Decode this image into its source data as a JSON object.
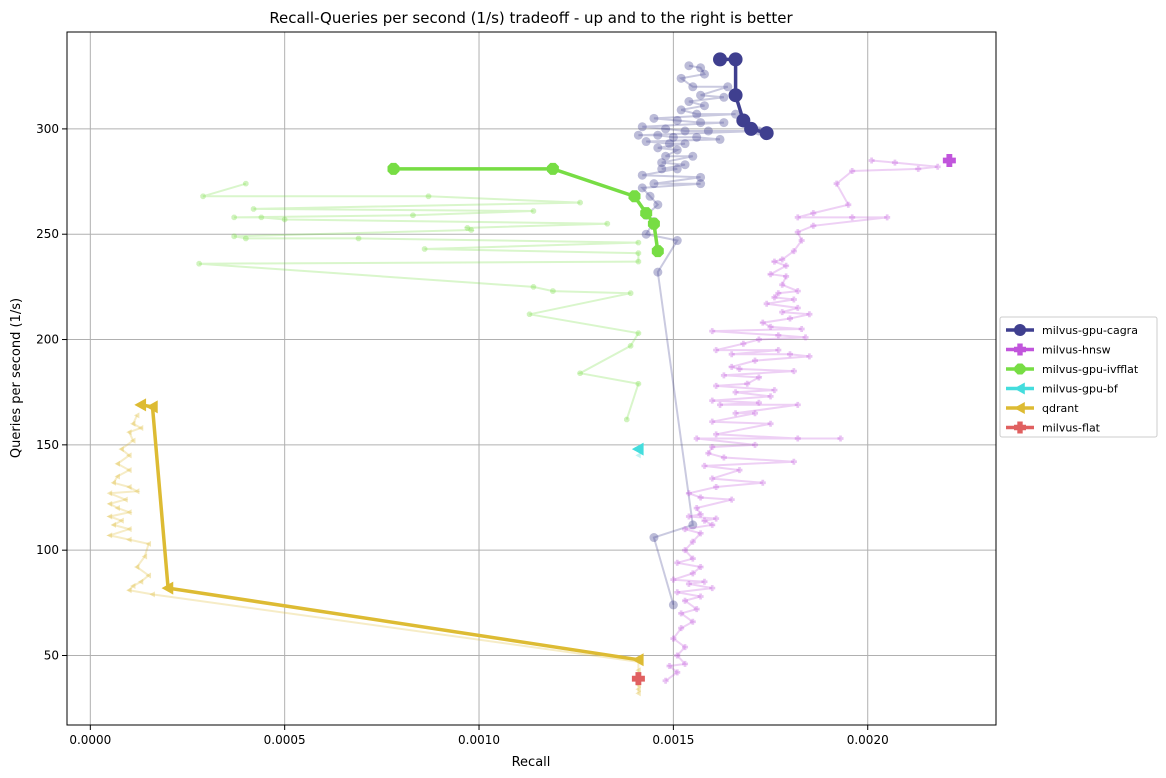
{
  "chart_data": {
    "type": "line",
    "title": "Recall-Queries per second (1/s) tradeoff - up and to the right is better",
    "xlabel": "Recall",
    "ylabel": "Queries per second (1/s)",
    "xlim": [
      -6e-05,
      0.00233
    ],
    "ylim": [
      17,
      346
    ],
    "xticks": [
      0.0,
      0.0005,
      0.001,
      0.0015,
      0.002
    ],
    "xtick_labels": [
      "0.0000",
      "0.0005",
      "0.0010",
      "0.0015",
      "0.0020"
    ],
    "yticks": [
      50,
      100,
      150,
      200,
      250,
      300
    ],
    "ytick_labels": [
      "50",
      "100",
      "150",
      "200",
      "250",
      "300"
    ],
    "grid": true,
    "legend_position": "right",
    "series": [
      {
        "name": "milvus-gpu-cagra",
        "color": "#3f3f8f",
        "marker": "circle",
        "frontier": [
          [
            0.00162,
            333
          ],
          [
            0.00166,
            333
          ],
          [
            0.00166,
            316
          ],
          [
            0.00168,
            304
          ],
          [
            0.0017,
            300
          ],
          [
            0.00174,
            298
          ]
        ],
        "scatter": [
          [
            0.00154,
            330
          ],
          [
            0.00157,
            329
          ],
          [
            0.00158,
            326
          ],
          [
            0.00152,
            324
          ],
          [
            0.00155,
            320
          ],
          [
            0.00164,
            320
          ],
          [
            0.00157,
            316
          ],
          [
            0.00163,
            315
          ],
          [
            0.00154,
            313
          ],
          [
            0.00158,
            311
          ],
          [
            0.00152,
            309
          ],
          [
            0.00156,
            307
          ],
          [
            0.00166,
            307
          ],
          [
            0.00145,
            305
          ],
          [
            0.00151,
            304
          ],
          [
            0.00157,
            303
          ],
          [
            0.00163,
            303
          ],
          [
            0.00142,
            301
          ],
          [
            0.00148,
            300
          ],
          [
            0.00153,
            299
          ],
          [
            0.00159,
            299
          ],
          [
            0.00172,
            299
          ],
          [
            0.00141,
            297
          ],
          [
            0.00146,
            297
          ],
          [
            0.0015,
            296
          ],
          [
            0.00156,
            296
          ],
          [
            0.00162,
            295
          ],
          [
            0.00143,
            294
          ],
          [
            0.00149,
            293
          ],
          [
            0.00153,
            293
          ],
          [
            0.00146,
            291
          ],
          [
            0.00151,
            290
          ],
          [
            0.00148,
            287
          ],
          [
            0.00155,
            287
          ],
          [
            0.00147,
            284
          ],
          [
            0.00153,
            283
          ],
          [
            0.00147,
            281
          ],
          [
            0.00151,
            281
          ],
          [
            0.00157,
            277
          ],
          [
            0.00142,
            278
          ],
          [
            0.00145,
            274
          ],
          [
            0.00157,
            274
          ],
          [
            0.00142,
            272
          ],
          [
            0.00144,
            268
          ],
          [
            0.00146,
            264
          ],
          [
            0.00143,
            259
          ],
          [
            0.00145,
            256
          ],
          [
            0.00143,
            250
          ],
          [
            0.00151,
            247
          ],
          [
            0.00146,
            232
          ],
          [
            0.00155,
            112
          ],
          [
            0.00145,
            106
          ],
          [
            0.0015,
            74
          ]
        ]
      },
      {
        "name": "milvus-hnsw",
        "color": "#c155dc",
        "marker": "plus",
        "frontier": [
          [
            0.00221,
            285
          ]
        ],
        "scatter": [
          [
            0.00201,
            285
          ],
          [
            0.00207,
            284
          ],
          [
            0.00213,
            281
          ],
          [
            0.00196,
            280
          ],
          [
            0.00218,
            282
          ],
          [
            0.00192,
            274
          ],
          [
            0.00195,
            264
          ],
          [
            0.00186,
            260
          ],
          [
            0.00182,
            258
          ],
          [
            0.00196,
            258
          ],
          [
            0.00205,
            258
          ],
          [
            0.00186,
            254
          ],
          [
            0.00182,
            251
          ],
          [
            0.00183,
            247
          ],
          [
            0.00181,
            242
          ],
          [
            0.00178,
            238
          ],
          [
            0.00176,
            237
          ],
          [
            0.00179,
            235
          ],
          [
            0.00175,
            231
          ],
          [
            0.00179,
            230
          ],
          [
            0.00178,
            226
          ],
          [
            0.00177,
            222
          ],
          [
            0.00182,
            223
          ],
          [
            0.00176,
            220
          ],
          [
            0.00181,
            219
          ],
          [
            0.00174,
            217
          ],
          [
            0.00182,
            215
          ],
          [
            0.00178,
            213
          ],
          [
            0.00185,
            212
          ],
          [
            0.0018,
            210
          ],
          [
            0.00173,
            208
          ],
          [
            0.00175,
            206
          ],
          [
            0.00183,
            205
          ],
          [
            0.0016,
            204
          ],
          [
            0.00177,
            202
          ],
          [
            0.00184,
            201
          ],
          [
            0.00172,
            200
          ],
          [
            0.00168,
            198
          ],
          [
            0.00161,
            195
          ],
          [
            0.00177,
            195
          ],
          [
            0.00165,
            193
          ],
          [
            0.0018,
            193
          ],
          [
            0.00185,
            192
          ],
          [
            0.00171,
            190
          ],
          [
            0.00165,
            187
          ],
          [
            0.00167,
            186
          ],
          [
            0.00181,
            185
          ],
          [
            0.00163,
            183
          ],
          [
            0.00172,
            182
          ],
          [
            0.00169,
            179
          ],
          [
            0.00161,
            178
          ],
          [
            0.00176,
            176
          ],
          [
            0.00166,
            175
          ],
          [
            0.00175,
            173
          ],
          [
            0.0016,
            171
          ],
          [
            0.00172,
            170
          ],
          [
            0.00162,
            169
          ],
          [
            0.00182,
            169
          ],
          [
            0.00166,
            165
          ],
          [
            0.00171,
            165
          ],
          [
            0.0016,
            161
          ],
          [
            0.00175,
            160
          ],
          [
            0.00161,
            155
          ],
          [
            0.00182,
            153
          ],
          [
            0.00193,
            153
          ],
          [
            0.00156,
            153
          ],
          [
            0.00171,
            150
          ],
          [
            0.0016,
            149
          ],
          [
            0.00159,
            146
          ],
          [
            0.00163,
            144
          ],
          [
            0.00181,
            142
          ],
          [
            0.00158,
            140
          ],
          [
            0.00167,
            138
          ],
          [
            0.0016,
            134
          ],
          [
            0.00173,
            132
          ],
          [
            0.00161,
            130
          ],
          [
            0.00154,
            127
          ],
          [
            0.00157,
            125
          ],
          [
            0.00165,
            124
          ],
          [
            0.00156,
            120
          ],
          [
            0.00157,
            117
          ],
          [
            0.00154,
            116
          ],
          [
            0.00161,
            115
          ],
          [
            0.00158,
            114
          ],
          [
            0.0016,
            112
          ],
          [
            0.00153,
            110
          ],
          [
            0.00157,
            108
          ],
          [
            0.00155,
            104
          ],
          [
            0.00153,
            100
          ],
          [
            0.00155,
            96
          ],
          [
            0.00151,
            94
          ],
          [
            0.00157,
            92
          ],
          [
            0.00155,
            89
          ],
          [
            0.0015,
            86
          ],
          [
            0.00158,
            85
          ],
          [
            0.00154,
            84
          ],
          [
            0.0016,
            82
          ],
          [
            0.00151,
            80
          ],
          [
            0.00157,
            78
          ],
          [
            0.00153,
            76
          ],
          [
            0.00156,
            72
          ],
          [
            0.00152,
            70
          ],
          [
            0.00155,
            66
          ],
          [
            0.00152,
            63
          ],
          [
            0.0015,
            58
          ],
          [
            0.00153,
            54
          ],
          [
            0.00151,
            50
          ],
          [
            0.00153,
            46
          ],
          [
            0.00149,
            45
          ],
          [
            0.00151,
            42
          ],
          [
            0.00148,
            38
          ]
        ]
      },
      {
        "name": "milvus-gpu-ivfflat",
        "color": "#77dd44",
        "marker": "octagon",
        "frontier": [
          [
            0.00078,
            281
          ],
          [
            0.00119,
            281
          ],
          [
            0.0014,
            268
          ],
          [
            0.00143,
            260
          ],
          [
            0.00145,
            255
          ],
          [
            0.00146,
            242
          ]
        ],
        "scatter": [
          [
            0.0004,
            274
          ],
          [
            0.00029,
            268
          ],
          [
            0.00087,
            268
          ],
          [
            0.00126,
            265
          ],
          [
            0.00042,
            262
          ],
          [
            0.00037,
            258
          ],
          [
            0.00044,
            258
          ],
          [
            0.00083,
            259
          ],
          [
            0.00114,
            261
          ],
          [
            0.0005,
            257
          ],
          [
            0.00097,
            253
          ],
          [
            0.00133,
            255
          ],
          [
            0.00098,
            252
          ],
          [
            0.00037,
            249
          ],
          [
            0.0004,
            248
          ],
          [
            0.00069,
            248
          ],
          [
            0.00086,
            243
          ],
          [
            0.00141,
            246
          ],
          [
            0.00141,
            241
          ],
          [
            0.00028,
            236
          ],
          [
            0.00141,
            237
          ],
          [
            0.00114,
            225
          ],
          [
            0.00119,
            223
          ],
          [
            0.00139,
            222
          ],
          [
            0.00113,
            212
          ],
          [
            0.00141,
            203
          ],
          [
            0.00139,
            197
          ],
          [
            0.00126,
            184
          ],
          [
            0.00141,
            179
          ],
          [
            0.00138,
            162
          ]
        ]
      },
      {
        "name": "milvus-gpu-bf",
        "color": "#44dddd",
        "marker": "triangle-left",
        "frontier": [
          [
            0.00141,
            148
          ]
        ],
        "scatter": [
          [
            0.00141,
            145
          ]
        ]
      },
      {
        "name": "qdrant",
        "color": "#ddbb33",
        "marker": "triangle-left",
        "frontier": [
          [
            0.00013,
            169
          ],
          [
            0.00016,
            168
          ],
          [
            0.0002,
            82
          ],
          [
            0.00141,
            48
          ]
        ],
        "scatter": [
          [
            0.00012,
            164
          ],
          [
            0.00011,
            160
          ],
          [
            0.0001,
            156
          ],
          [
            0.00013,
            158
          ],
          [
            0.00011,
            152
          ],
          [
            8e-05,
            148
          ],
          [
            0.0001,
            145
          ],
          [
            7e-05,
            141
          ],
          [
            0.0001,
            138
          ],
          [
            7e-05,
            135
          ],
          [
            6e-05,
            132
          ],
          [
            0.0001,
            130
          ],
          [
            5e-05,
            127
          ],
          [
            0.00012,
            128
          ],
          [
            9e-05,
            124
          ],
          [
            5e-05,
            122
          ],
          [
            7e-05,
            120
          ],
          [
            0.0001,
            118
          ],
          [
            5e-05,
            116
          ],
          [
            8e-05,
            114
          ],
          [
            6e-05,
            112
          ],
          [
            0.0001,
            110
          ],
          [
            5e-05,
            107
          ],
          [
            0.0001,
            105
          ],
          [
            0.00015,
            103
          ],
          [
            0.00014,
            97
          ],
          [
            0.00012,
            92
          ],
          [
            0.00015,
            88
          ],
          [
            0.00013,
            85
          ],
          [
            0.00011,
            83
          ],
          [
            0.0001,
            81
          ],
          [
            0.00016,
            79
          ],
          [
            0.00141,
            47
          ],
          [
            0.00141,
            43
          ],
          [
            0.00141,
            40
          ],
          [
            0.00141,
            36
          ],
          [
            0.00141,
            34
          ],
          [
            0.00141,
            32
          ]
        ]
      },
      {
        "name": "milvus-flat",
        "color": "#e06060",
        "marker": "plus",
        "frontier": [
          [
            0.00141,
            39
          ]
        ],
        "scatter": []
      }
    ]
  }
}
